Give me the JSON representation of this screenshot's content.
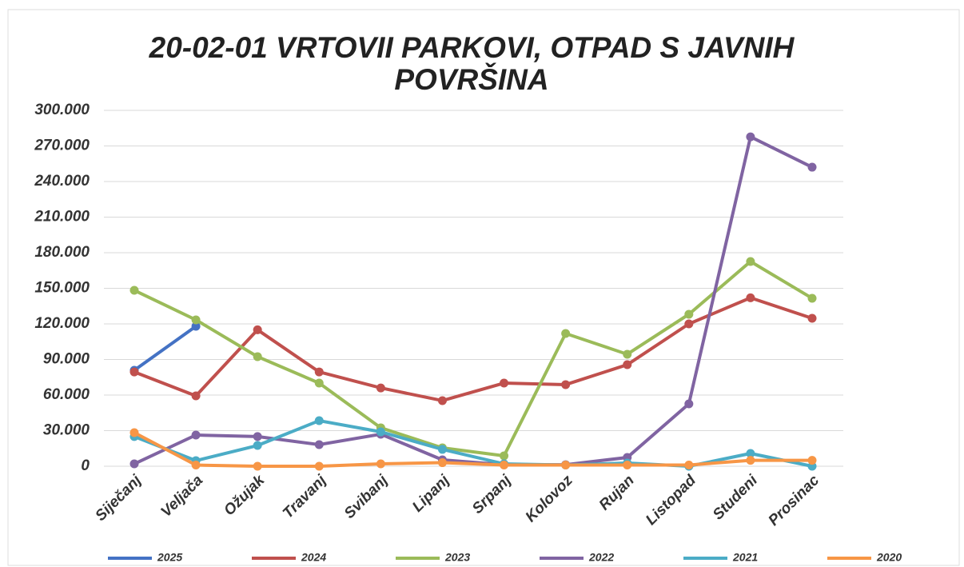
{
  "chart_data": {
    "type": "line",
    "title": "20-02-01 VRTOVII PARKOVI, OTPAD S JAVNIH POVRŠINA",
    "categories": [
      "Siječanj",
      "Veljača",
      "Ožujak",
      "Travanj",
      "Svibanj",
      "Lipanj",
      "Srpanj",
      "Kolovoz",
      "Rujan",
      "Listopad",
      "Studeni",
      "Prosinac"
    ],
    "series": [
      {
        "name": "2025",
        "color": "#4472c4",
        "values": [
          80900,
          118000,
          null,
          null,
          null,
          null,
          null,
          null,
          null,
          null,
          null,
          null
        ]
      },
      {
        "name": "2024",
        "color": "#c0504d",
        "values": [
          79500,
          59300,
          115000,
          79500,
          66000,
          55300,
          70100,
          68800,
          85600,
          120000,
          142000,
          124700
        ]
      },
      {
        "name": "2023",
        "color": "#9bbb59",
        "values": [
          148300,
          123400,
          92400,
          70100,
          32400,
          15500,
          8800,
          111900,
          94400,
          128100,
          172600,
          141600
        ]
      },
      {
        "name": "2022",
        "color": "#8064a2",
        "values": [
          2000,
          26300,
          25000,
          18200,
          27000,
          5400,
          1300,
          1300,
          7400,
          52600,
          277700,
          252100
        ]
      },
      {
        "name": "2021",
        "color": "#4bacc6",
        "values": [
          25000,
          4700,
          17500,
          38400,
          29000,
          14200,
          2000,
          1000,
          2700,
          0,
          10800,
          0
        ]
      },
      {
        "name": "2020",
        "color": "#f79646",
        "values": [
          28300,
          1000,
          0,
          0,
          2000,
          3000,
          1000,
          1000,
          1000,
          1000,
          5000,
          5000
        ]
      }
    ],
    "ylim": [
      0,
      300000
    ],
    "yticks": [
      0,
      {
        "value": 30000,
        "label": "30.000"
      },
      {
        "value": 60000,
        "label": "60.000"
      },
      {
        "value": 90000,
        "label": "90.000"
      },
      {
        "value": 120000,
        "label": "120.000"
      },
      {
        "value": 150000,
        "label": "150.000"
      },
      {
        "value": 180000,
        "label": "180.000"
      },
      {
        "value": 210000,
        "label": "210.000"
      },
      {
        "value": 240000,
        "label": "240.000"
      },
      {
        "value": 270000,
        "label": "270.000"
      },
      {
        "value": 300000,
        "label": "300.000"
      }
    ],
    "grid": true,
    "legend": "bottom"
  }
}
